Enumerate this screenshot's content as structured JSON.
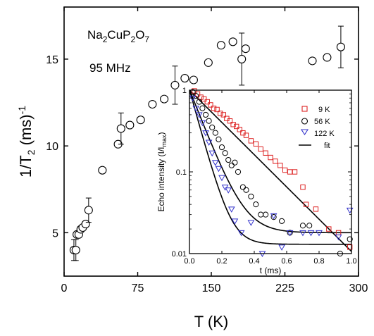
{
  "chart_data": [
    {
      "type": "scatter",
      "xlabel": "T (K)",
      "ylabel": "1/T",
      "ylabel_sub": "2",
      "ylabel_suffix": " (ms)",
      "ylabel_sup": "-1",
      "xlim": [
        0,
        300
      ],
      "ylim": [
        2.5,
        18.0
      ],
      "xticks": [
        0,
        75,
        150,
        225,
        300
      ],
      "yticks": [
        5,
        10,
        15
      ],
      "compound": {
        "main": "Na",
        "s1": "2",
        "mid1": "CuP",
        "s2": "2",
        "mid2": "O",
        "s3": "7"
      },
      "frequency": "95 MHz",
      "series": [
        {
          "marker": "open-circle",
          "x": [
            10,
            12,
            13,
            15,
            17,
            19,
            22,
            25,
            39,
            55,
            58,
            67,
            78,
            90,
            102,
            113,
            123,
            132,
            147,
            160,
            172,
            181,
            185,
            253,
            268,
            282
          ],
          "y": [
            4.0,
            4.0,
            4.9,
            4.9,
            5.2,
            5.3,
            5.5,
            6.3,
            8.6,
            10.1,
            11.0,
            11.2,
            11.5,
            12.4,
            12.7,
            13.5,
            13.9,
            13.8,
            14.8,
            15.8,
            16.0,
            15.0,
            15.6,
            14.9,
            15.1,
            15.7
          ],
          "yerr": [
            0.6,
            0.6,
            0,
            0,
            0,
            0,
            0,
            0.7,
            0,
            0,
            0.9,
            0,
            0,
            0,
            0,
            1.1,
            0,
            0,
            0,
            0,
            0,
            1.5,
            0,
            0,
            0,
            1.2
          ]
        }
      ]
    },
    {
      "type": "scatter",
      "role": "inset",
      "xlabel": "t (ms)",
      "ylabel": "Echo intensity (I/I",
      "ylabel_sub": "max",
      "ylabel_suffix": ")",
      "xlim": [
        0.0,
        1.0
      ],
      "ylim": [
        0.01,
        1.0
      ],
      "yscale": "log",
      "xticks": [
        0.0,
        0.2,
        0.4,
        0.6,
        0.8,
        1.0
      ],
      "xticklabels": [
        "0.0",
        "0.2",
        "0.4",
        "0.6",
        "0.8",
        "1.0"
      ],
      "yticks": [
        0.01,
        0.1,
        1
      ],
      "yticklabels": [
        "0.01",
        "0.1",
        "1"
      ],
      "series": [
        {
          "name": "9 K",
          "marker": "open-square",
          "color": "#dd2222",
          "x": [
            0.03,
            0.05,
            0.07,
            0.09,
            0.11,
            0.13,
            0.15,
            0.17,
            0.19,
            0.21,
            0.23,
            0.25,
            0.27,
            0.29,
            0.31,
            0.33,
            0.35,
            0.38,
            0.41,
            0.44,
            0.47,
            0.5,
            0.53,
            0.56,
            0.59,
            0.62,
            0.65,
            0.7,
            0.72,
            0.78,
            0.86,
            0.92,
            0.99
          ],
          "y": [
            0.98,
            0.9,
            0.82,
            0.78,
            0.72,
            0.66,
            0.6,
            0.58,
            0.52,
            0.5,
            0.45,
            0.42,
            0.38,
            0.36,
            0.33,
            0.3,
            0.28,
            0.24,
            0.22,
            0.19,
            0.17,
            0.15,
            0.135,
            0.12,
            0.105,
            0.1,
            0.1,
            0.065,
            0.04,
            0.035,
            0.02,
            0.018,
            0.012
          ]
        },
        {
          "name": "56 K",
          "marker": "open-circle",
          "color": "#000000",
          "x": [
            0.02,
            0.04,
            0.06,
            0.08,
            0.1,
            0.12,
            0.14,
            0.16,
            0.18,
            0.2,
            0.22,
            0.24,
            0.26,
            0.28,
            0.3,
            0.33,
            0.35,
            0.38,
            0.41,
            0.44,
            0.47,
            0.52,
            0.57,
            0.62,
            0.7,
            0.74,
            0.93,
            0.99
          ],
          "y": [
            0.95,
            0.85,
            0.72,
            0.6,
            0.5,
            0.42,
            0.35,
            0.3,
            0.25,
            0.2,
            0.17,
            0.14,
            0.12,
            0.13,
            0.1,
            0.065,
            0.06,
            0.05,
            0.04,
            0.03,
            0.03,
            0.028,
            0.025,
            0.018,
            0.022,
            0.022,
            0.01,
            0.015
          ]
        },
        {
          "name": "122 K",
          "marker": "open-triangle-down",
          "color": "#3333cc",
          "x": [
            0.02,
            0.04,
            0.06,
            0.08,
            0.1,
            0.12,
            0.14,
            0.16,
            0.18,
            0.2,
            0.22,
            0.24,
            0.26,
            0.28,
            0.32,
            0.38,
            0.45,
            0.52,
            0.57,
            0.62,
            0.7,
            0.75,
            0.8,
            0.92,
            0.99
          ],
          "y": [
            0.8,
            0.6,
            0.5,
            0.4,
            0.3,
            0.23,
            0.17,
            0.13,
            0.11,
            0.085,
            0.065,
            0.06,
            0.035,
            0.025,
            0.018,
            0.024,
            0.01,
            0.029,
            0.012,
            0.018,
            0.018,
            0.018,
            0.018,
            0.016,
            0.034
          ]
        },
        {
          "name": "fit",
          "marker": "line",
          "color": "#000000",
          "curves": [
            {
              "a": 1.0,
              "tau": 0.22,
              "c": 0.0
            },
            {
              "a": 1.0,
              "tau": 0.085,
              "c": 0.018
            },
            {
              "a": 1.0,
              "tau": 0.06,
              "c": 0.013
            }
          ]
        }
      ]
    }
  ]
}
